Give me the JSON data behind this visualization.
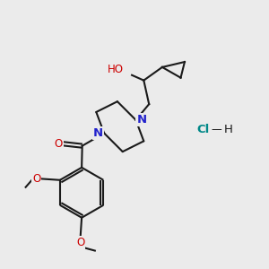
{
  "background_color": "#ebebeb",
  "bond_color": "#1a1a1a",
  "nitrogen_color": "#2222cc",
  "oxygen_color": "#cc0000",
  "chlorine_color": "#008888",
  "line_width": 1.5,
  "font_size": 8.5,
  "figsize": [
    3.0,
    3.0
  ],
  "dpi": 100,
  "xlim": [
    0,
    10
  ],
  "ylim": [
    0,
    10
  ]
}
